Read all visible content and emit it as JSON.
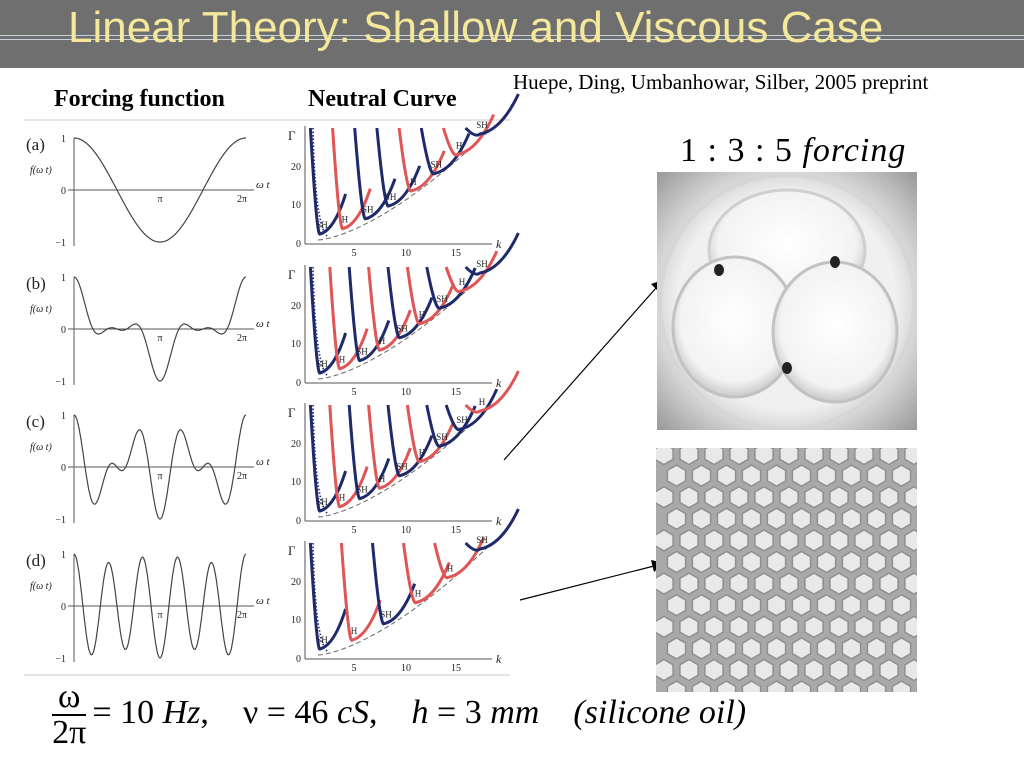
{
  "slide": {
    "title": "Linear Theory: Shallow and Viscous Case",
    "citation": "Huepe, Ding, Umbanhowar, Silber, 2005 preprint"
  },
  "columns": {
    "forcing_header": "Forcing function",
    "neutral_header": "Neutral Curve"
  },
  "forcing_panels": [
    {
      "label": "(a)",
      "ylabel": "f(ω t)",
      "xlabel": "ω t",
      "yticks": [
        "1",
        "0",
        "−1"
      ],
      "xticks": [
        "π",
        "2π"
      ]
    },
    {
      "label": "(b)",
      "ylabel": "f(ω t)",
      "xlabel": "ω t",
      "yticks": [
        "1",
        "0",
        "−1"
      ],
      "xticks": [
        "π",
        "2π"
      ]
    },
    {
      "label": "(c)",
      "ylabel": "f(ω t)",
      "xlabel": "ω t",
      "yticks": [
        "1",
        "0",
        "−1"
      ],
      "xticks": [
        "π",
        "2π"
      ]
    },
    {
      "label": "(d)",
      "ylabel": "f(ω t)",
      "xlabel": "ω t",
      "yticks": [
        "1",
        "0",
        "−1"
      ],
      "xticks": [
        "π",
        "2π"
      ]
    }
  ],
  "neutral_panels": [
    {
      "ylabel": "Γ",
      "xlabel": "k",
      "yticks": [
        "0",
        "10",
        "20"
      ],
      "xticks": [
        "5",
        "10",
        "15"
      ],
      "tongues": [
        "SH",
        "H",
        "SH",
        "SH",
        "H",
        "SH",
        "H",
        "SH"
      ]
    },
    {
      "ylabel": "Γ",
      "xlabel": "k",
      "yticks": [
        "0",
        "10",
        "20"
      ],
      "xticks": [
        "5",
        "10",
        "15"
      ],
      "tongues": [
        "SH",
        "H",
        "SH",
        "H",
        "SH",
        "H",
        "SH",
        "H",
        "SH"
      ]
    },
    {
      "ylabel": "Γ",
      "xlabel": "k",
      "yticks": [
        "0",
        "10",
        "20"
      ],
      "xticks": [
        "5",
        "10",
        "15"
      ],
      "tongues": [
        "SH",
        "H",
        "SH",
        "H",
        "SH",
        "H",
        "SH",
        "SH",
        "H"
      ]
    },
    {
      "ylabel": "Γ",
      "xlabel": "k",
      "yticks": [
        "0",
        "10",
        "20"
      ],
      "xticks": [
        "5",
        "10",
        "15"
      ],
      "tongues": [
        "SH",
        "H",
        "SH",
        "H",
        "H",
        "SH"
      ]
    }
  ],
  "photos": {
    "caption_ratio": "1 : 3 : 5",
    "caption_word": "forcing",
    "top_pattern": "three-lobe-pattern",
    "bottom_pattern": "hexagonal-pattern"
  },
  "parameters": {
    "omega": "ω",
    "two_pi": "2π",
    "frequency": "= 10 ",
    "frequency_unit": "Hz",
    "nu": "ν = 46 ",
    "nu_unit": "cS",
    "h": "h",
    "h_value": " = 3 ",
    "h_unit": "mm",
    "fluid": "(silicone oil)"
  },
  "colors": {
    "title_bar": "#6f6f6f",
    "title_text": "#f4e89a",
    "curve_blue": "#1f2a6b",
    "curve_red": "#e05555"
  }
}
